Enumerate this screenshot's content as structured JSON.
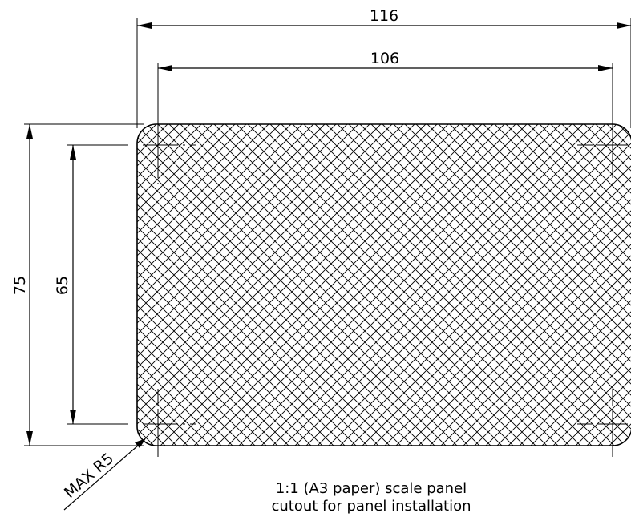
{
  "dimensions": {
    "overall_width": "116",
    "hole_spacing_width": "106",
    "overall_height": "75",
    "hole_spacing_height": "65",
    "corner_radius": "MAX R5"
  },
  "note": {
    "line1": "1:1 (A3 paper) scale panel",
    "line2": "cutout for panel installation"
  }
}
